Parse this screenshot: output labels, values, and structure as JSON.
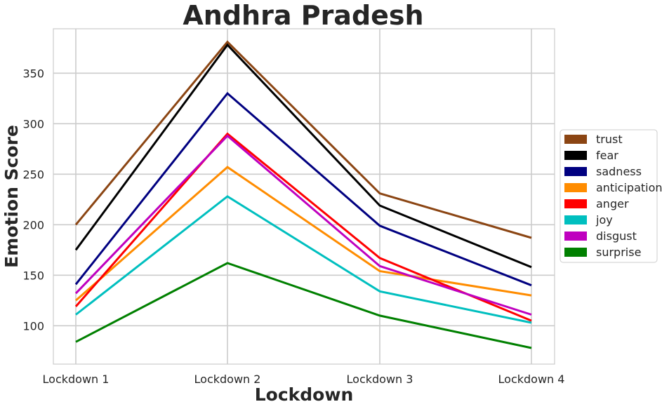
{
  "chart_data": {
    "type": "line",
    "title": "Andhra Pradesh",
    "xlabel": "Lockdown",
    "ylabel": "Emotion Score",
    "categories": [
      "Lockdown 1",
      "Lockdown 2",
      "Lockdown 3",
      "Lockdown 4"
    ],
    "ylim": [
      62,
      394
    ],
    "yticks": [
      100,
      150,
      200,
      250,
      300,
      350
    ],
    "grid": true,
    "legend_position": "center-right",
    "series": [
      {
        "name": "trust",
        "color": "#8B4513",
        "values": [
          200,
          381,
          231,
          187
        ]
      },
      {
        "name": "fear",
        "color": "#000000",
        "values": [
          175,
          378,
          219,
          158
        ]
      },
      {
        "name": "sadness",
        "color": "#000080",
        "values": [
          141,
          330,
          199,
          140
        ]
      },
      {
        "name": "anticipation",
        "color": "#FF8C00",
        "values": [
          125,
          257,
          154,
          130
        ]
      },
      {
        "name": "anger",
        "color": "#FF0000",
        "values": [
          119,
          290,
          167,
          105
        ]
      },
      {
        "name": "joy",
        "color": "#00BFBF",
        "values": [
          111,
          228,
          134,
          103
        ]
      },
      {
        "name": "disgust",
        "color": "#BF00BF",
        "values": [
          132,
          288,
          159,
          111
        ]
      },
      {
        "name": "surprise",
        "color": "#008000",
        "values": [
          84,
          162,
          110,
          78
        ]
      }
    ]
  }
}
